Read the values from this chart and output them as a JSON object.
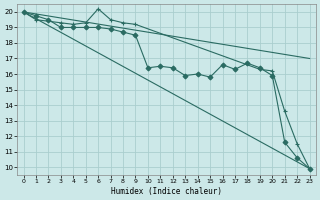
{
  "xlabel": "Humidex (Indice chaleur)",
  "xlim": [
    -0.5,
    23.5
  ],
  "ylim": [
    9.5,
    20.5
  ],
  "xticks": [
    0,
    1,
    2,
    3,
    4,
    5,
    6,
    7,
    8,
    9,
    10,
    11,
    12,
    13,
    14,
    15,
    16,
    17,
    18,
    19,
    20,
    21,
    22,
    23
  ],
  "yticks": [
    10,
    11,
    12,
    13,
    14,
    15,
    16,
    17,
    18,
    19,
    20
  ],
  "bg_color": "#cce8e8",
  "grid_color": "#aacece",
  "line_color": "#2a6b62",
  "lines": [
    {
      "x": [
        0,
        23
      ],
      "y": [
        20,
        9.9
      ],
      "marker": null
    },
    {
      "x": [
        0,
        1,
        2,
        3,
        4,
        5,
        6,
        7,
        8,
        9,
        10,
        11,
        12,
        13,
        14,
        15,
        16,
        17,
        18,
        19,
        20,
        21,
        22,
        23
      ],
      "y": [
        20,
        19.75,
        19.5,
        19.0,
        19.0,
        19.0,
        19.0,
        18.9,
        18.7,
        18.5,
        16.4,
        16.5,
        16.4,
        15.9,
        16.0,
        15.8,
        16.6,
        16.3,
        16.7,
        16.4,
        15.9,
        11.6,
        10.6,
        9.9
      ],
      "marker": "D"
    },
    {
      "x": [
        0,
        1,
        3,
        4,
        5,
        6,
        7,
        8,
        9,
        19,
        20,
        21,
        22,
        23
      ],
      "y": [
        20,
        19.5,
        19.3,
        19.2,
        19.3,
        20.2,
        19.5,
        19.3,
        19.2,
        16.3,
        16.2,
        13.6,
        11.5,
        9.9
      ],
      "marker": "+"
    },
    {
      "x": [
        0,
        23
      ],
      "y": [
        20,
        17.0
      ],
      "marker": null
    }
  ]
}
